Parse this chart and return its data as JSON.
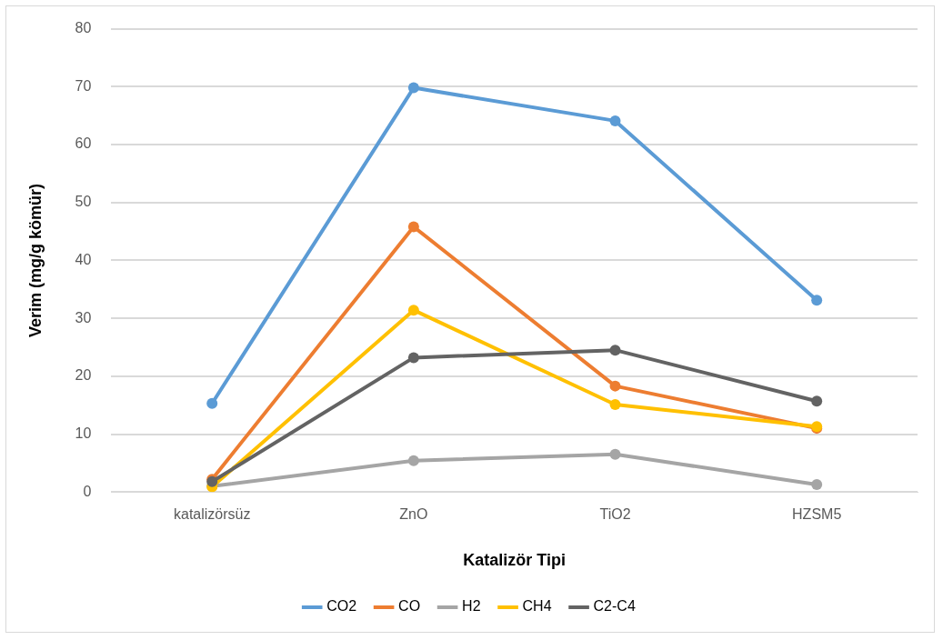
{
  "chart_data": {
    "type": "line",
    "xlabel": "Katalizör Tipi",
    "ylabel": "Verim (mg/g kömür)",
    "categories": [
      "katalizörsüz",
      "ZnO",
      "TiO2",
      "HZSM5"
    ],
    "series": [
      {
        "name": "CO2",
        "color": "#5b9bd5",
        "values": [
          15.3,
          69.8,
          64.1,
          33.1
        ]
      },
      {
        "name": "CO",
        "color": "#ed7d31",
        "values": [
          2.2,
          45.8,
          18.3,
          11.0
        ]
      },
      {
        "name": "H2",
        "color": "#a5a5a5",
        "values": [
          1.0,
          5.4,
          6.5,
          1.3
        ]
      },
      {
        "name": "CH4",
        "color": "#ffc000",
        "values": [
          0.9,
          31.4,
          15.1,
          11.3
        ]
      },
      {
        "name": "C2-C4",
        "color": "#636363",
        "values": [
          1.8,
          23.2,
          24.5,
          15.7
        ]
      }
    ],
    "ylim": [
      0,
      80
    ],
    "yticks": [
      0,
      10,
      20,
      30,
      40,
      50,
      60,
      70,
      80
    ],
    "grid": "y",
    "legend": "bottom",
    "marker": "circle",
    "line_style": "solid"
  }
}
